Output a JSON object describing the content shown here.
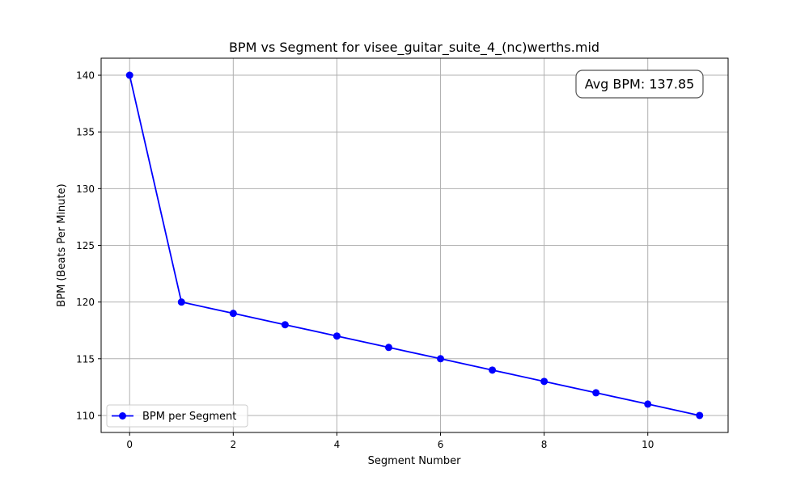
{
  "chart_data": {
    "type": "line",
    "title": "BPM vs Segment for visee_guitar_suite_4_(nc)werths.mid",
    "xlabel": "Segment Number",
    "ylabel": "BPM (Beats Per Minute)",
    "xlim": [
      -0.55,
      11.55
    ],
    "ylim": [
      108.5,
      141.5
    ],
    "xticks": [
      0,
      2,
      4,
      6,
      8,
      10
    ],
    "yticks": [
      110,
      115,
      120,
      125,
      130,
      135,
      140
    ],
    "grid": true,
    "legend_position": "lower-left",
    "series": [
      {
        "name": "BPM per Segment",
        "color": "#0000ff",
        "marker": "circle",
        "x": [
          0,
          1,
          2,
          3,
          4,
          5,
          6,
          7,
          8,
          9,
          10,
          11
        ],
        "y": [
          140,
          120,
          119,
          118,
          117,
          116,
          115,
          114,
          113,
          112,
          111,
          110
        ]
      }
    ],
    "annotation": {
      "text": "Avg BPM: 137.85",
      "position": "top-right"
    }
  }
}
